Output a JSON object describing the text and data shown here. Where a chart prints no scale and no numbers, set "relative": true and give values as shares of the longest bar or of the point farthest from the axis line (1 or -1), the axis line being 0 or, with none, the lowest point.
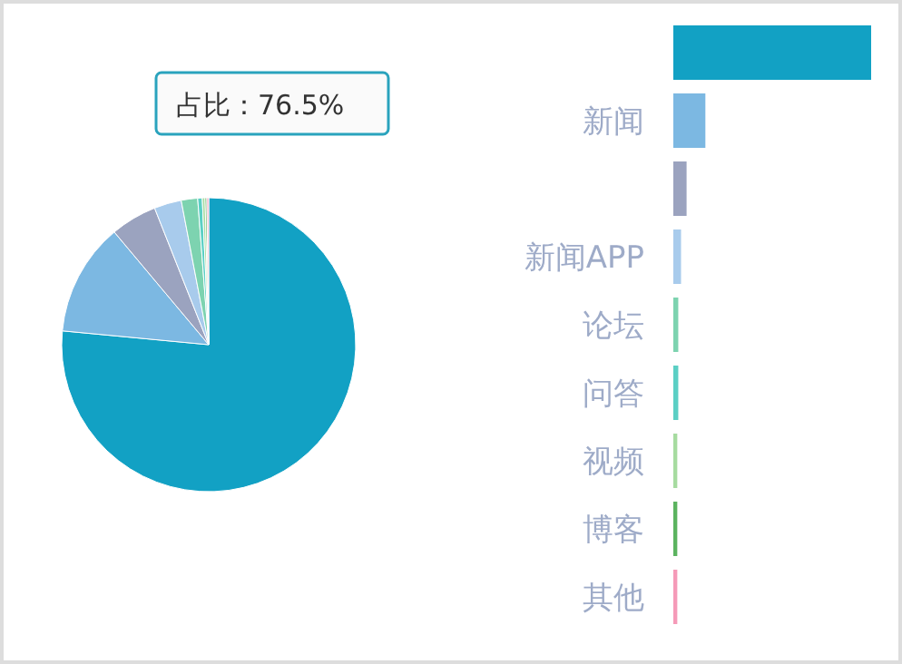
{
  "chart_data": [
    {
      "type": "pie",
      "categories": [
        null,
        null,
        null,
        null,
        null,
        null,
        null,
        null,
        null
      ],
      "values": [
        76.5,
        12.4,
        5.1,
        3.0,
        1.8,
        0.5,
        0.3,
        0.2,
        0.2
      ],
      "colors": [
        "#12a1c4",
        "#7cb8e2",
        "#9ba3bf",
        "#a8cbec",
        "#7dd3b0",
        "#5bcfc4",
        "#a6dba0",
        "#5bb35f",
        "#f59ab8"
      ],
      "annotations": [
        "占比：76.5%"
      ]
    },
    {
      "type": "bar",
      "orientation": "horizontal",
      "relative": true,
      "categories": [
        null,
        "新闻",
        null,
        "新闻APP",
        "论坛",
        "问答",
        "视频",
        "博客",
        "其他"
      ],
      "values": [
        1,
        0.162,
        0.067,
        0.039,
        0.025,
        0.025,
        0.02,
        0.02,
        0.02
      ],
      "colors": [
        "#12a1c4",
        "#7cb8e2",
        "#9ba3bf",
        "#a8cbec",
        "#7dd3b0",
        "#5bcfc4",
        "#a6dba0",
        "#5bb35f",
        "#f59ab8"
      ]
    }
  ]
}
